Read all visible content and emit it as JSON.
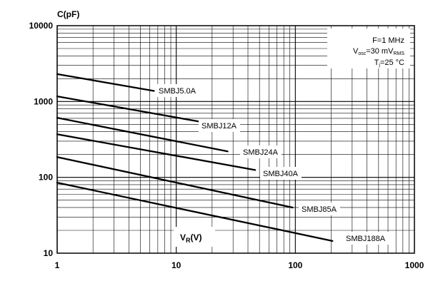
{
  "chart_data": {
    "type": "line",
    "xscale": "log",
    "yscale": "log",
    "xlim": [
      1,
      1000
    ],
    "ylim": [
      10,
      10000
    ],
    "grid": true,
    "xlabel": "V",
    "xlabel_sub": "R",
    "xlabel_unit": "(V)",
    "ylabel": "C(pF)",
    "x_ticks": [
      "1",
      "10",
      "100",
      "1000"
    ],
    "y_ticks": [
      "10",
      "100",
      "1000",
      "10000"
    ],
    "conditions": {
      "line1": "F=1 MHz",
      "line2_main": "V",
      "line2_sub": "osc",
      "line2_rest": "=30 mV",
      "line2_sub2": "RMS",
      "line3_main": "T",
      "line3_sub": "j",
      "line3_rest": "=25 °C"
    },
    "series": [
      {
        "name": "SMBJ5.0A",
        "x": [
          1,
          6.5
        ],
        "y": [
          2300,
          1380
        ]
      },
      {
        "name": "SMBJ12A",
        "x": [
          1,
          16
        ],
        "y": [
          1170,
          540
        ]
      },
      {
        "name": "SMBJ24A",
        "x": [
          1,
          27
        ],
        "y": [
          610,
          220
        ]
      },
      {
        "name": "SMBJ40A",
        "x": [
          1,
          46
        ],
        "y": [
          370,
          125
        ]
      },
      {
        "name": "SMBJ85A",
        "x": [
          1,
          95
        ],
        "y": [
          185,
          40
        ]
      },
      {
        "name": "SMBJ188A",
        "x": [
          1,
          205
        ],
        "y": [
          85,
          14.5
        ]
      }
    ]
  }
}
